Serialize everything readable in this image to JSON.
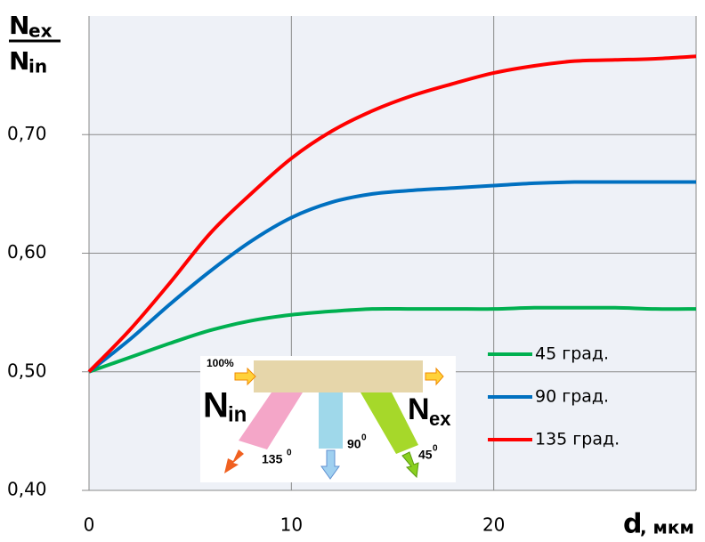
{
  "chart_data": {
    "type": "line",
    "y_label": {
      "numerator": "N",
      "numerator_sub": "ex",
      "denominator": "N",
      "denominator_sub": "in"
    },
    "x_label": {
      "main": "d",
      "unit": ", мкм"
    },
    "x": [
      0,
      2,
      4,
      6,
      8,
      10,
      12,
      14,
      16,
      18,
      20,
      22,
      24,
      26,
      28,
      30
    ],
    "series": [
      {
        "name": "45 град.",
        "color": "#00b050",
        "values": [
          0.5,
          0.512,
          0.524,
          0.535,
          0.543,
          0.548,
          0.551,
          0.553,
          0.553,
          0.553,
          0.553,
          0.554,
          0.554,
          0.554,
          0.553,
          0.553
        ]
      },
      {
        "name": "90 град.",
        "color": "#0070c0",
        "values": [
          0.5,
          0.527,
          0.557,
          0.585,
          0.61,
          0.63,
          0.643,
          0.65,
          0.653,
          0.655,
          0.657,
          0.659,
          0.66,
          0.66,
          0.66,
          0.66
        ]
      },
      {
        "name": "135 град.",
        "color": "#ff0000",
        "values": [
          0.5,
          0.535,
          0.575,
          0.617,
          0.65,
          0.68,
          0.703,
          0.72,
          0.733,
          0.743,
          0.752,
          0.758,
          0.762,
          0.763,
          0.764,
          0.766
        ]
      }
    ],
    "xlim": [
      0,
      30
    ],
    "xticks": [
      0,
      10,
      20
    ],
    "ylim": [
      0.4,
      0.8
    ],
    "yticks": [
      {
        "value": 0.4,
        "label": "0,40"
      },
      {
        "value": 0.5,
        "label": "0,50"
      },
      {
        "value": 0.6,
        "label": "0,60"
      },
      {
        "value": 0.7,
        "label": "0,70"
      }
    ],
    "grid": true,
    "legend": "lower right",
    "inset": {
      "input": "100%",
      "n_in": "N",
      "n_in_sub": "in",
      "n_ex": "N",
      "n_ex_sub": "ex",
      "angle_135": "135",
      "angle_90": "90",
      "angle_45": "45",
      "degree": "0"
    }
  }
}
